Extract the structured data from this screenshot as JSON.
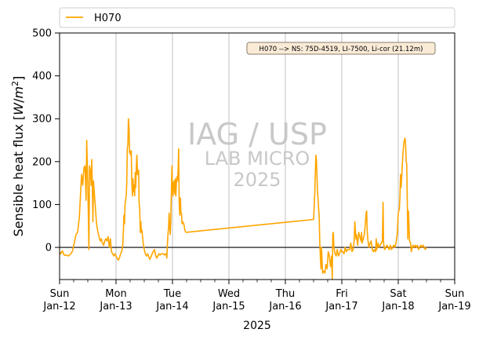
{
  "chart_data": {
    "type": "line",
    "xlabel": "2025",
    "ylabel": "Sensible heat flux [W/m²]",
    "ylabel_main": "Sensible heat flux ",
    "ylabel_unit_open": "[",
    "ylabel_unit_W": "W",
    "ylabel_unit_slash": "/",
    "ylabel_unit_m": "m",
    "ylabel_unit_exp": "2",
    "ylabel_unit_close": "]",
    "ylim": [
      -75,
      500
    ],
    "xlim_days": [
      0,
      7
    ],
    "yticks": [
      0,
      100,
      200,
      300,
      400,
      500
    ],
    "xticks": [
      {
        "day": "Sun",
        "date": "Jan-12"
      },
      {
        "day": "Mon",
        "date": "Jan-13"
      },
      {
        "day": "Tue",
        "date": "Jan-14"
      },
      {
        "day": "Wed",
        "date": "Jan-15"
      },
      {
        "day": "Thu",
        "date": "Jan-16"
      },
      {
        "day": "Fri",
        "date": "Jan-17"
      },
      {
        "day": "Sat",
        "date": "Jan-18"
      },
      {
        "day": "Sun",
        "date": "Jan-19"
      }
    ],
    "minor_ticks_per_day": 4,
    "grid": "vertical",
    "legend_position": "top",
    "annotation": "H070 --> NS: 75D-4519, LI-7500, Li-cor (21.12m)",
    "watermark": [
      "IAG / USP",
      "LAB MICRO",
      "2025"
    ],
    "zero_line": true,
    "series": [
      {
        "name": "H070",
        "color": "#FFA500",
        "points": [
          [
            0.0,
            -10
          ],
          [
            0.02,
            -15
          ],
          [
            0.05,
            -8
          ],
          [
            0.08,
            -18
          ],
          [
            0.12,
            -18
          ],
          [
            0.16,
            -20
          ],
          [
            0.2,
            -15
          ],
          [
            0.23,
            -8
          ],
          [
            0.26,
            10
          ],
          [
            0.29,
            30
          ],
          [
            0.32,
            35
          ],
          [
            0.35,
            70
          ],
          [
            0.37,
            120
          ],
          [
            0.39,
            170
          ],
          [
            0.41,
            145
          ],
          [
            0.43,
            185
          ],
          [
            0.45,
            190
          ],
          [
            0.47,
            110
          ],
          [
            0.48,
            250
          ],
          [
            0.5,
            150
          ],
          [
            0.52,
            -5
          ],
          [
            0.53,
            190
          ],
          [
            0.55,
            175
          ],
          [
            0.56,
            145
          ],
          [
            0.57,
            205
          ],
          [
            0.58,
            145
          ],
          [
            0.59,
            60
          ],
          [
            0.6,
            155
          ],
          [
            0.62,
            120
          ],
          [
            0.63,
            100
          ],
          [
            0.64,
            80
          ],
          [
            0.66,
            50
          ],
          [
            0.68,
            35
          ],
          [
            0.7,
            25
          ],
          [
            0.72,
            15
          ],
          [
            0.74,
            20
          ],
          [
            0.76,
            10
          ],
          [
            0.78,
            5
          ],
          [
            0.8,
            15
          ],
          [
            0.82,
            20
          ],
          [
            0.84,
            15
          ],
          [
            0.86,
            25
          ],
          [
            0.88,
            0
          ],
          [
            0.9,
            20
          ],
          [
            0.92,
            -10
          ],
          [
            0.94,
            -15
          ],
          [
            0.96,
            -20
          ],
          [
            0.98,
            -15
          ],
          [
            1.0,
            -20
          ],
          [
            1.02,
            -25
          ],
          [
            1.04,
            -30
          ],
          [
            1.06,
            -25
          ],
          [
            1.08,
            -15
          ],
          [
            1.1,
            -10
          ],
          [
            1.12,
            5
          ],
          [
            1.13,
            40
          ],
          [
            1.14,
            75
          ],
          [
            1.15,
            55
          ],
          [
            1.16,
            100
          ],
          [
            1.18,
            120
          ],
          [
            1.19,
            150
          ],
          [
            1.2,
            230
          ],
          [
            1.21,
            240
          ],
          [
            1.22,
            300
          ],
          [
            1.23,
            280
          ],
          [
            1.24,
            220
          ],
          [
            1.25,
            225
          ],
          [
            1.26,
            215
          ],
          [
            1.27,
            225
          ],
          [
            1.28,
            150
          ],
          [
            1.29,
            120
          ],
          [
            1.3,
            160
          ],
          [
            1.31,
            130
          ],
          [
            1.32,
            145
          ],
          [
            1.33,
            120
          ],
          [
            1.34,
            175
          ],
          [
            1.35,
            140
          ],
          [
            1.36,
            190
          ],
          [
            1.37,
            215
          ],
          [
            1.38,
            170
          ],
          [
            1.39,
            170
          ],
          [
            1.4,
            180
          ],
          [
            1.41,
            100
          ],
          [
            1.42,
            90
          ],
          [
            1.43,
            35
          ],
          [
            1.44,
            60
          ],
          [
            1.45,
            35
          ],
          [
            1.46,
            40
          ],
          [
            1.48,
            10
          ],
          [
            1.5,
            -5
          ],
          [
            1.52,
            -15
          ],
          [
            1.54,
            -20
          ],
          [
            1.56,
            -15
          ],
          [
            1.58,
            -22
          ],
          [
            1.6,
            -28
          ],
          [
            1.62,
            -22
          ],
          [
            1.64,
            -15
          ],
          [
            1.66,
            -10
          ],
          [
            1.68,
            -5
          ],
          [
            1.7,
            -18
          ],
          [
            1.72,
            -25
          ],
          [
            1.74,
            -20
          ],
          [
            1.76,
            -15
          ],
          [
            1.78,
            -18
          ],
          [
            1.8,
            -15
          ],
          [
            1.82,
            -15
          ],
          [
            1.84,
            -15
          ],
          [
            1.86,
            -18
          ],
          [
            1.88,
            -15
          ],
          [
            1.89,
            -15
          ],
          [
            1.9,
            -25
          ],
          [
            1.91,
            5
          ],
          [
            1.92,
            30
          ],
          [
            1.93,
            45
          ],
          [
            1.94,
            80
          ],
          [
            1.95,
            50
          ],
          [
            1.96,
            30
          ],
          [
            1.97,
            60
          ],
          [
            1.98,
            130
          ],
          [
            1.99,
            190
          ],
          [
            2.0,
            130
          ],
          [
            2.01,
            120
          ],
          [
            2.02,
            150
          ],
          [
            2.03,
            155
          ],
          [
            2.04,
            125
          ],
          [
            2.05,
            160
          ],
          [
            2.06,
            120
          ],
          [
            2.07,
            150
          ],
          [
            2.08,
            165
          ],
          [
            2.09,
            155
          ],
          [
            2.1,
            185
          ],
          [
            2.11,
            230
          ],
          [
            2.12,
            100
          ],
          [
            2.13,
            75
          ],
          [
            2.14,
            115
          ],
          [
            2.15,
            80
          ],
          [
            2.16,
            80
          ],
          [
            2.17,
            55
          ],
          [
            2.18,
            60
          ],
          [
            2.2,
            55
          ],
          [
            2.22,
            40
          ],
          [
            2.24,
            35
          ],
          [
            4.5,
            65
          ],
          [
            4.52,
            120
          ],
          [
            4.54,
            215
          ],
          [
            4.55,
            205
          ],
          [
            4.56,
            170
          ],
          [
            4.57,
            130
          ],
          [
            4.58,
            110
          ],
          [
            4.59,
            90
          ],
          [
            4.6,
            70
          ],
          [
            4.61,
            10
          ],
          [
            4.62,
            -20
          ],
          [
            4.63,
            -50
          ],
          [
            4.64,
            0
          ],
          [
            4.65,
            -30
          ],
          [
            4.66,
            -60
          ],
          [
            4.68,
            -55
          ],
          [
            4.7,
            -60
          ],
          [
            4.72,
            -40
          ],
          [
            4.74,
            -50
          ],
          [
            4.76,
            -10
          ],
          [
            4.78,
            -20
          ],
          [
            4.8,
            -45
          ],
          [
            4.82,
            -20
          ],
          [
            4.83,
            -75
          ],
          [
            4.84,
            30
          ],
          [
            4.85,
            35
          ],
          [
            4.86,
            0
          ],
          [
            4.88,
            -15
          ],
          [
            4.9,
            -20
          ],
          [
            4.92,
            -5
          ],
          [
            4.94,
            -20
          ],
          [
            4.96,
            -15
          ],
          [
            4.98,
            -5
          ],
          [
            5.0,
            -10
          ],
          [
            5.02,
            -10
          ],
          [
            5.04,
            -15
          ],
          [
            5.06,
            0
          ],
          [
            5.08,
            -10
          ],
          [
            5.1,
            -5
          ],
          [
            5.12,
            -5
          ],
          [
            5.14,
            -5
          ],
          [
            5.16,
            10
          ],
          [
            5.18,
            -10
          ],
          [
            5.2,
            -5
          ],
          [
            5.22,
            15
          ],
          [
            5.23,
            60
          ],
          [
            5.24,
            40
          ],
          [
            5.25,
            20
          ],
          [
            5.26,
            30
          ],
          [
            5.28,
            5
          ],
          [
            5.3,
            35
          ],
          [
            5.32,
            25
          ],
          [
            5.34,
            15
          ],
          [
            5.35,
            35
          ],
          [
            5.36,
            10
          ],
          [
            5.38,
            20
          ],
          [
            5.4,
            30
          ],
          [
            5.42,
            60
          ],
          [
            5.43,
            80
          ],
          [
            5.44,
            85
          ],
          [
            5.45,
            40
          ],
          [
            5.46,
            20
          ],
          [
            5.48,
            0
          ],
          [
            5.5,
            10
          ],
          [
            5.52,
            15
          ],
          [
            5.54,
            -5
          ],
          [
            5.56,
            -10
          ],
          [
            5.58,
            -5
          ],
          [
            5.6,
            -10
          ],
          [
            5.61,
            20
          ],
          [
            5.62,
            -5
          ],
          [
            5.64,
            10
          ],
          [
            5.66,
            0
          ],
          [
            5.68,
            5
          ],
          [
            5.7,
            10
          ],
          [
            5.72,
            15
          ],
          [
            5.73,
            105
          ],
          [
            5.74,
            10
          ],
          [
            5.75,
            0
          ],
          [
            5.76,
            -5
          ],
          [
            5.78,
            0
          ],
          [
            5.8,
            5
          ],
          [
            5.82,
            0
          ],
          [
            5.84,
            -5
          ],
          [
            5.86,
            5
          ],
          [
            5.88,
            -5
          ],
          [
            5.9,
            0
          ],
          [
            5.92,
            5
          ],
          [
            5.94,
            0
          ],
          [
            5.96,
            10
          ],
          [
            5.98,
            30
          ],
          [
            6.0,
            80
          ],
          [
            6.02,
            90
          ],
          [
            6.03,
            120
          ],
          [
            6.04,
            170
          ],
          [
            6.05,
            140
          ],
          [
            6.06,
            160
          ],
          [
            6.08,
            215
          ],
          [
            6.1,
            245
          ],
          [
            6.12,
            255
          ],
          [
            6.13,
            240
          ],
          [
            6.14,
            200
          ],
          [
            6.15,
            195
          ],
          [
            6.16,
            110
          ],
          [
            6.17,
            20
          ],
          [
            6.18,
            85
          ],
          [
            6.19,
            50
          ],
          [
            6.2,
            15
          ],
          [
            6.22,
            10
          ],
          [
            6.23,
            -10
          ],
          [
            6.24,
            -5
          ],
          [
            6.26,
            5
          ],
          [
            6.28,
            0
          ],
          [
            6.3,
            5
          ],
          [
            6.32,
            0
          ],
          [
            6.34,
            5
          ],
          [
            6.36,
            -5
          ],
          [
            6.38,
            0
          ],
          [
            6.4,
            5
          ],
          [
            6.42,
            0
          ],
          [
            6.44,
            5
          ],
          [
            6.46,
            0
          ],
          [
            6.48,
            -5
          ],
          [
            6.5,
            0
          ]
        ]
      }
    ]
  }
}
